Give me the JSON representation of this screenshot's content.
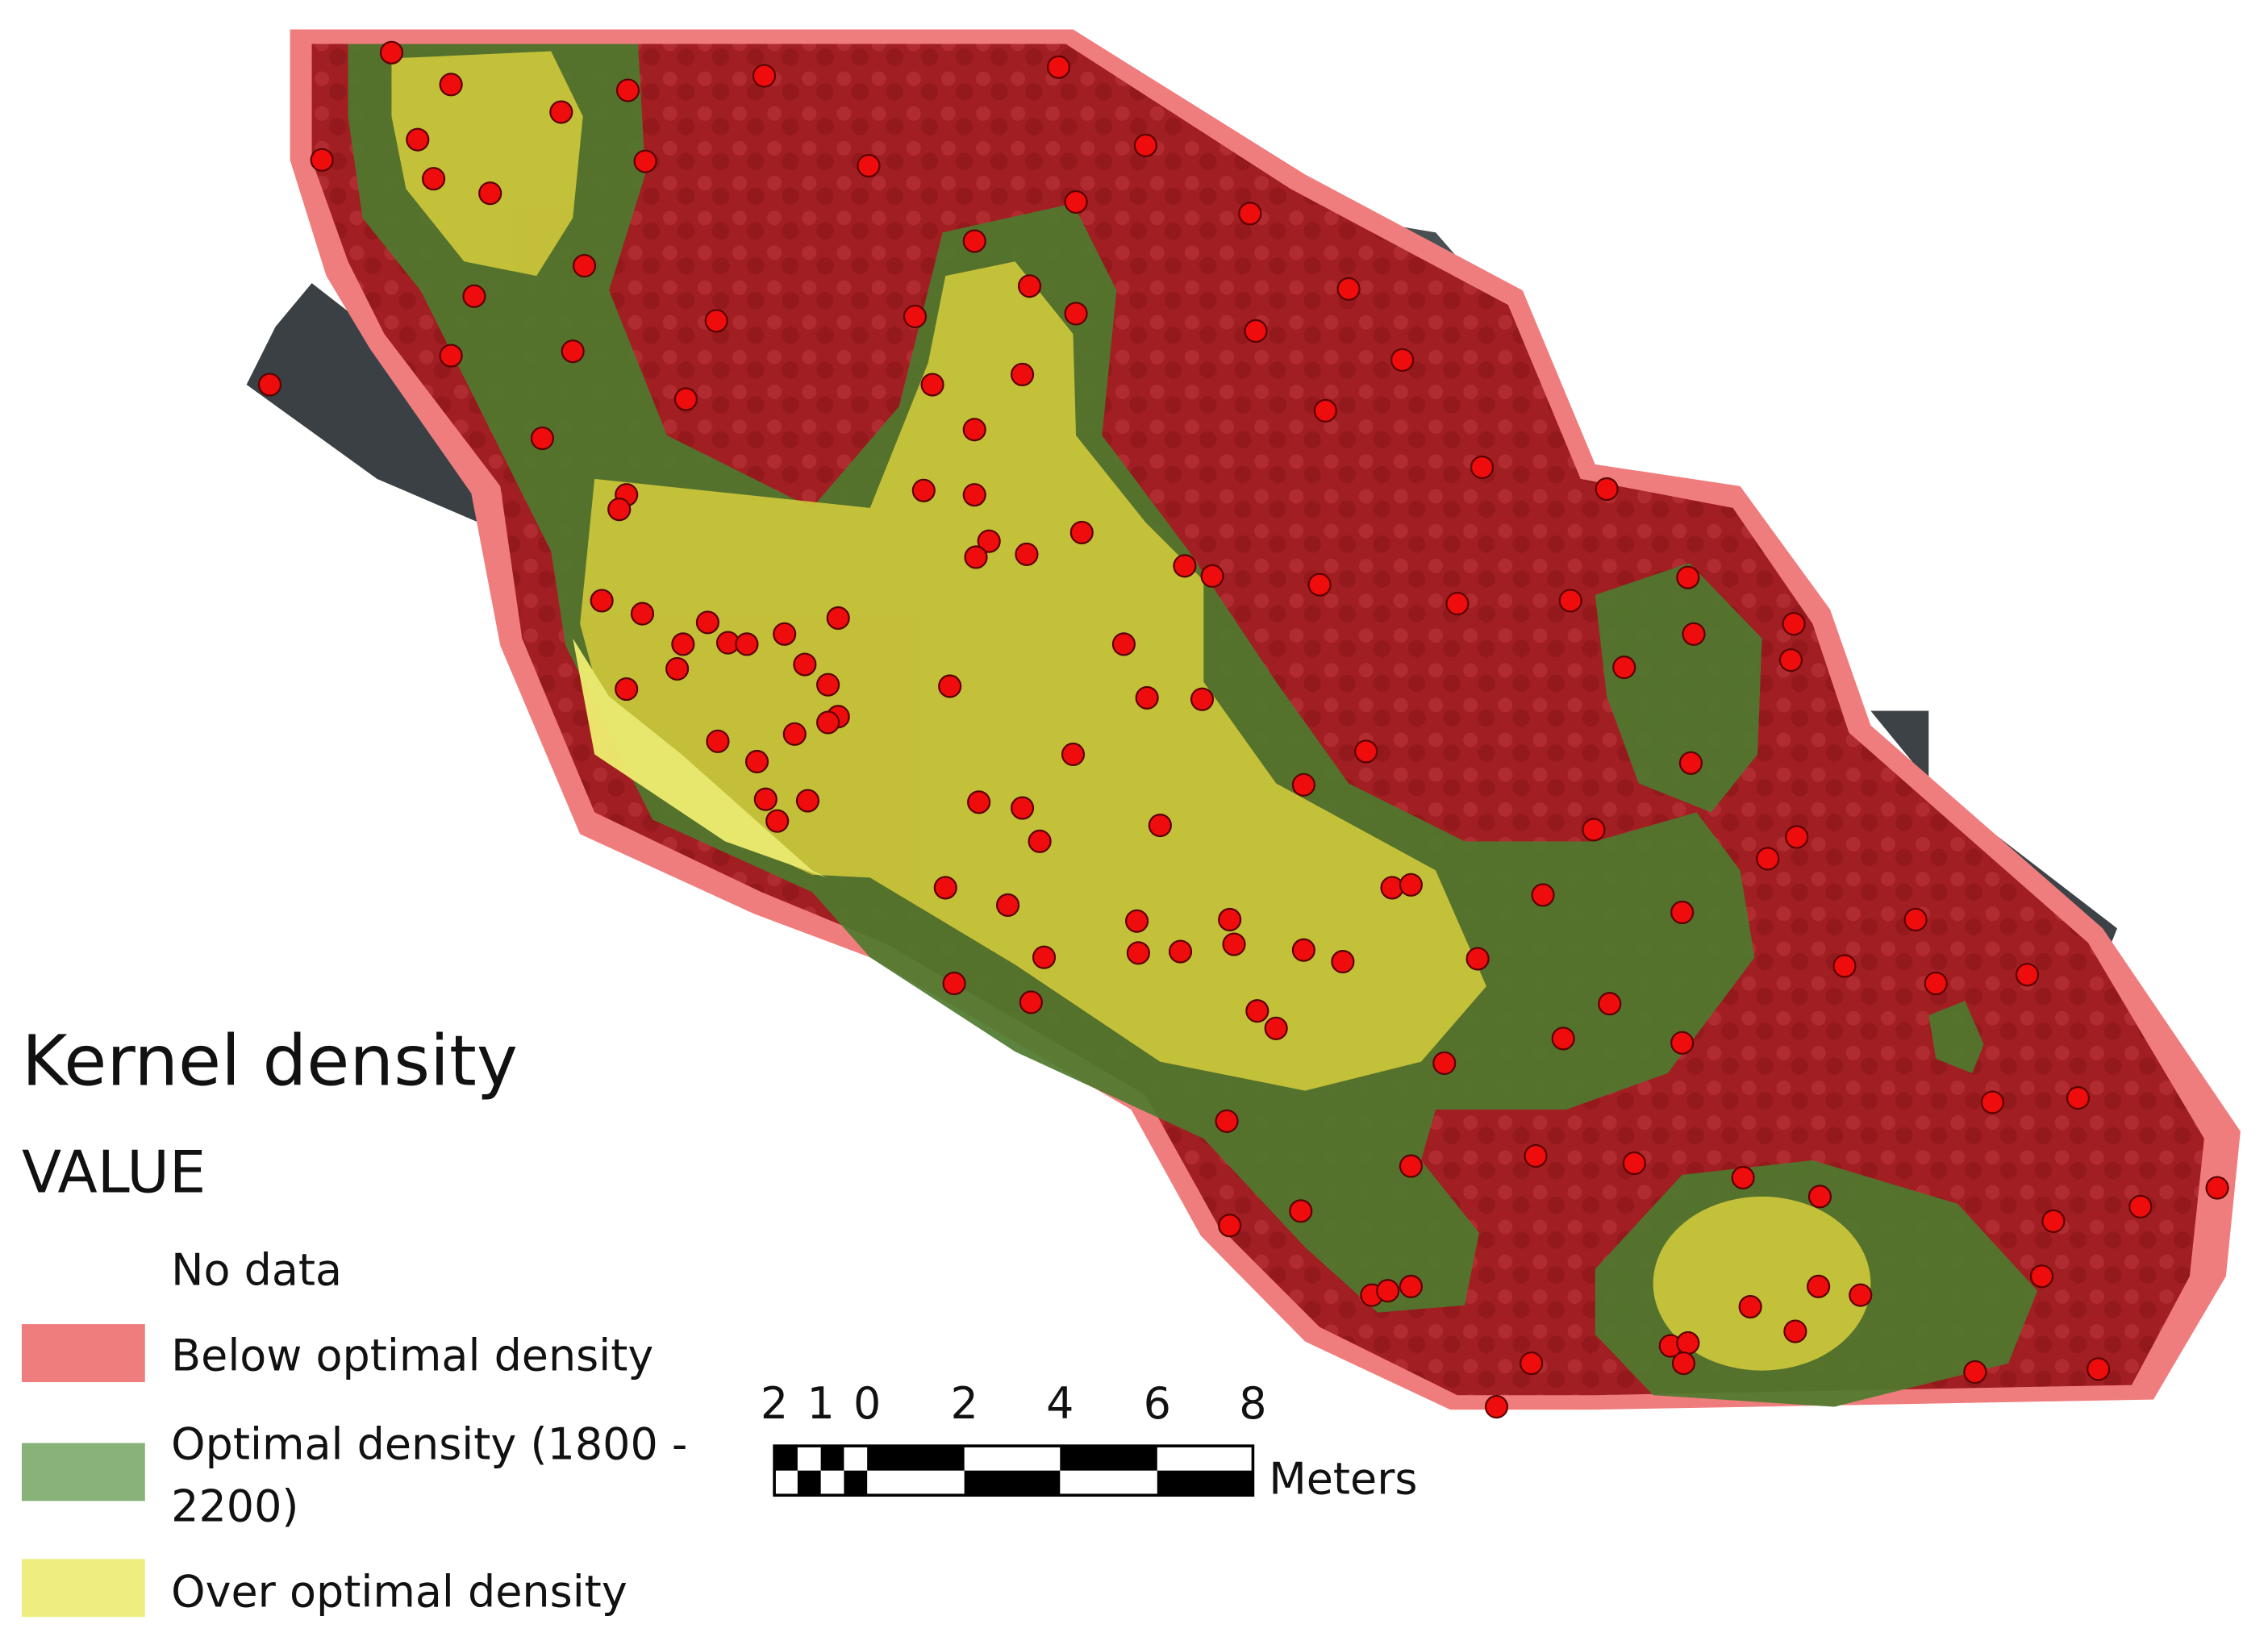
{
  "legend": {
    "title": "Kernel density",
    "subtitle": "VALUE",
    "items": [
      {
        "label": [
          "No data"
        ]
      },
      {
        "label": [
          "Below optimal density"
        ]
      },
      {
        "label": [
          "Optimal density (1800 -",
          "2200)"
        ]
      },
      {
        "label": [
          "Over optimal density"
        ]
      }
    ]
  },
  "scale_bar": {
    "labels": [
      "2",
      "1",
      "0",
      "2",
      "4",
      "6",
      "8"
    ],
    "unit": "Meters"
  }
}
